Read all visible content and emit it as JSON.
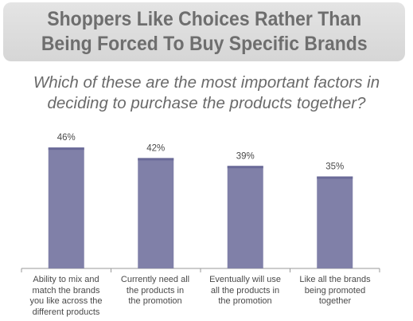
{
  "header": {
    "title": "Shoppers Like Choices Rather Than\nBeing Forced To Buy Specific Brands",
    "subtitle": "Which of these are the most important factors in\ndeciding to purchase the products together?"
  },
  "colors": {
    "bar_fill": "#8080a8",
    "bar_top": "#6a6a98",
    "axis": "#9a9a9a"
  },
  "chart_data": {
    "type": "bar",
    "categories": [
      "Ability to mix and\nmatch the brands\nyou like across the\ndifferent products",
      "Currently need all\nthe products in\nthe promotion",
      "Eventually will use\nall the products in\nthe promotion",
      "Like all the brands\nbeing promoted\ntogether"
    ],
    "values": [
      46,
      42,
      39,
      35
    ],
    "data_labels": [
      "46%",
      "42%",
      "39%",
      "35%"
    ],
    "ylim": [
      0,
      50
    ],
    "grid": false,
    "legend": "none"
  }
}
